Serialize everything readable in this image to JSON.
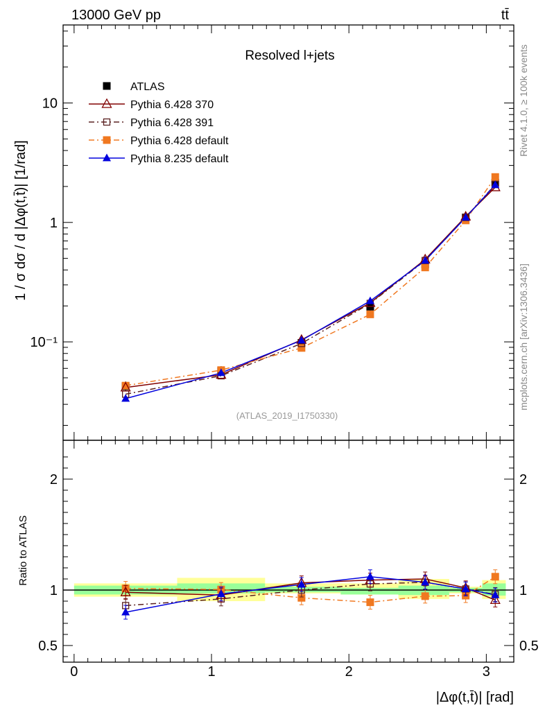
{
  "header": {
    "left": "13000 GeV pp",
    "right": "tt̄"
  },
  "side_labels": {
    "rivet": "Rivet 4.1.0, ≥ 100k events",
    "mcplots": "mcplots.cern.ch [arXiv:1306.3436]"
  },
  "chart_data": {
    "type": "line",
    "title": "Resolved l+jets",
    "watermark": "(ATLAS_2019_I1750330)",
    "ylabel": "1 / σ dσ / d |Δφ(t,t̄)| [1/rad]",
    "xlabel": "|Δφ(t,t̄)| [rad]",
    "ratio_ylabel": "Ratio to ATLAS",
    "xlim": [
      -0.08,
      3.2
    ],
    "ylim_log": [
      0.015,
      45
    ],
    "ratio_ylim": [
      0.35,
      2.35
    ],
    "x_ticks": [
      "0",
      "1",
      "2",
      "3"
    ],
    "y_ticks": [
      "10⁻¹",
      "1",
      "10"
    ],
    "ratio_y_ticks": [
      "0.5",
      "1",
      "2"
    ],
    "x": [
      0.375,
      1.07,
      1.655,
      2.155,
      2.555,
      2.85,
      3.065
    ],
    "bins": [
      [
        0,
        0.75
      ],
      [
        0.75,
        1.39
      ],
      [
        1.39,
        1.94
      ],
      [
        1.94,
        2.36
      ],
      [
        2.36,
        2.73
      ],
      [
        2.73,
        2.97
      ],
      [
        2.97,
        3.1416
      ]
    ],
    "legend": [
      "ATLAS",
      "Pythia 6.428 370",
      "Pythia 6.428 391",
      "Pythia 6.428 default",
      "Pythia 8.235 default"
    ],
    "series": [
      {
        "name": "ATLAS",
        "values": [
          0.0425,
          0.057,
          0.098,
          0.197,
          0.445,
          1.1,
          2.15
        ],
        "color": "#000000",
        "marker": "square-filled",
        "line": "none"
      },
      {
        "name": "Pythia 6.428 370",
        "values": [
          0.0415,
          0.053,
          0.104,
          0.212,
          0.49,
          1.12,
          1.97
        ],
        "color": "#800000",
        "marker": "triangle-open",
        "line": "solid"
      },
      {
        "name": "Pythia 6.428 391",
        "values": [
          0.0365,
          0.052,
          0.097,
          0.21,
          0.48,
          1.1,
          2.08
        ],
        "color": "#5a2020",
        "marker": "square-open",
        "line": "dashdot"
      },
      {
        "name": "Pythia 6.428 default",
        "values": [
          0.043,
          0.058,
          0.089,
          0.17,
          0.42,
          1.04,
          2.4
        ],
        "color": "#f07820",
        "marker": "square-filled",
        "line": "dashdot"
      },
      {
        "name": "Pythia 8.235 default",
        "values": [
          0.0335,
          0.055,
          0.103,
          0.22,
          0.48,
          1.1,
          2.06
        ],
        "color": "#0000dd",
        "marker": "triangle-filled",
        "line": "solid"
      }
    ],
    "ratio": {
      "Pythia 6.428 370": [
        0.98,
        0.955,
        1.065,
        1.09,
        1.1,
        1.02,
        0.91
      ],
      "Pythia 6.428 391": [
        0.86,
        0.92,
        1.0,
        1.055,
        1.07,
        1.01,
        0.96
      ],
      "Pythia 6.428 default": [
        1.015,
        1.005,
        0.93,
        0.89,
        0.945,
        0.95,
        1.12
      ],
      "Pythia 8.235 default": [
        0.8,
        0.965,
        1.05,
        1.12,
        1.07,
        1.01,
        0.955
      ]
    },
    "band_stat": [
      [
        0.96,
        1.04
      ],
      [
        0.97,
        1.06
      ],
      [
        0.98,
        1.03
      ],
      [
        0.96,
        1.02
      ],
      [
        0.955,
        1.04
      ],
      [
        0.98,
        1.02
      ],
      [
        0.95,
        1.06
      ]
    ],
    "band_total": [
      [
        0.94,
        1.06
      ],
      [
        0.9,
        1.11
      ],
      [
        0.97,
        1.06
      ],
      [
        0.96,
        1.06
      ],
      [
        0.92,
        1.1
      ],
      [
        0.97,
        1.03
      ],
      [
        0.92,
        1.09
      ]
    ]
  }
}
